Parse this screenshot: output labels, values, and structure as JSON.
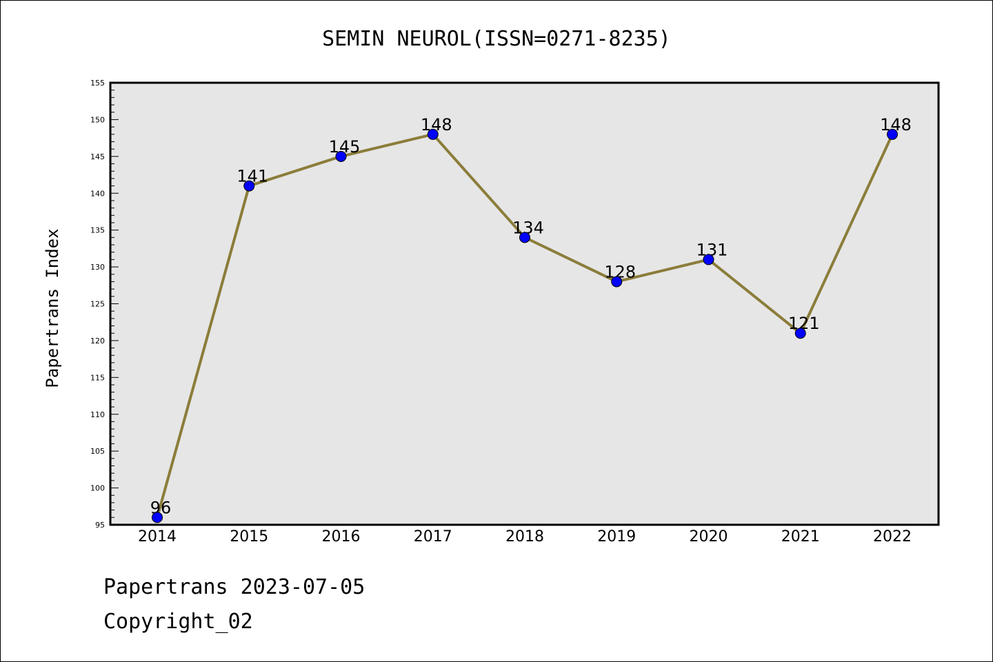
{
  "chart_data": {
    "type": "line",
    "title": "SEMIN NEUROL(ISSN=0271-8235)",
    "ylabel": "Papertrans Index",
    "xlabel": "",
    "categories": [
      "2014",
      "2015",
      "2016",
      "2017",
      "2018",
      "2019",
      "2020",
      "2021",
      "2022"
    ],
    "values": [
      96,
      141,
      145,
      148,
      134,
      128,
      131,
      121,
      148
    ],
    "data_labels": [
      "96",
      "141",
      "145",
      "148",
      "134",
      "128",
      "131",
      "121",
      "148"
    ],
    "ylim": [
      95,
      155
    ],
    "yticks": [
      "95",
      "100",
      "105",
      "110",
      "115",
      "120",
      "125",
      "130",
      "135",
      "140",
      "145",
      "150",
      "155"
    ],
    "grid": false,
    "line_color": "#8b7d3a",
    "marker_color": "#0000ff",
    "plot_background": "#e6e6e6"
  },
  "footer": {
    "line1": "Papertrans 2023-07-05",
    "line2": "Copyright_02"
  }
}
